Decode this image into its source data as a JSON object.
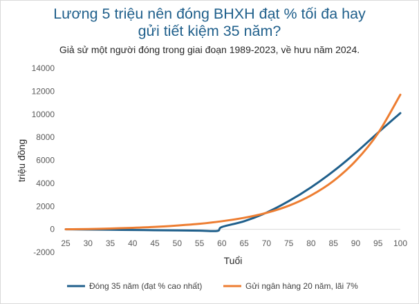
{
  "chart_data": {
    "type": "line",
    "title": "Lương 5 triệu nên đóng BHXH đạt % tối đa hay\ngửi tiết kiệm 35 năm?",
    "subtitle": "Giả sử một người đóng trong giai đoạn 1989-2023, về hưu năm 2024.",
    "xlabel": "Tuổi",
    "ylabel": "triệu đồng",
    "xlim": [
      25,
      100
    ],
    "ylim": [
      -2000,
      14000
    ],
    "xticks": [
      25,
      30,
      35,
      40,
      45,
      50,
      55,
      60,
      65,
      70,
      75,
      80,
      85,
      90,
      95,
      100
    ],
    "yticks": [
      -2000,
      0,
      2000,
      4000,
      6000,
      8000,
      10000,
      12000,
      14000
    ],
    "grid": false,
    "legend_position": "bottom",
    "series": [
      {
        "name": "Đóng 35 năm (đạt % cao nhất)",
        "color": "#1f5f8b",
        "x": [
          25,
          30,
          35,
          40,
          45,
          50,
          55,
          59,
          60,
          65,
          70,
          75,
          80,
          85,
          90,
          95,
          100
        ],
        "y": [
          0,
          -20,
          -40,
          -60,
          -80,
          -100,
          -120,
          -140,
          200,
          700,
          1450,
          2450,
          3650,
          5050,
          6650,
          8400,
          10100
        ]
      },
      {
        "name": "Gửi ngân hàng 20 năm, lãi 7%",
        "color": "#ed7d31",
        "x": [
          25,
          30,
          35,
          40,
          45,
          50,
          55,
          60,
          65,
          70,
          75,
          80,
          85,
          90,
          95,
          100
        ],
        "y": [
          0,
          25,
          70,
          130,
          210,
          330,
          480,
          700,
          1000,
          1430,
          2050,
          2950,
          4200,
          5950,
          8350,
          11700
        ]
      }
    ]
  }
}
